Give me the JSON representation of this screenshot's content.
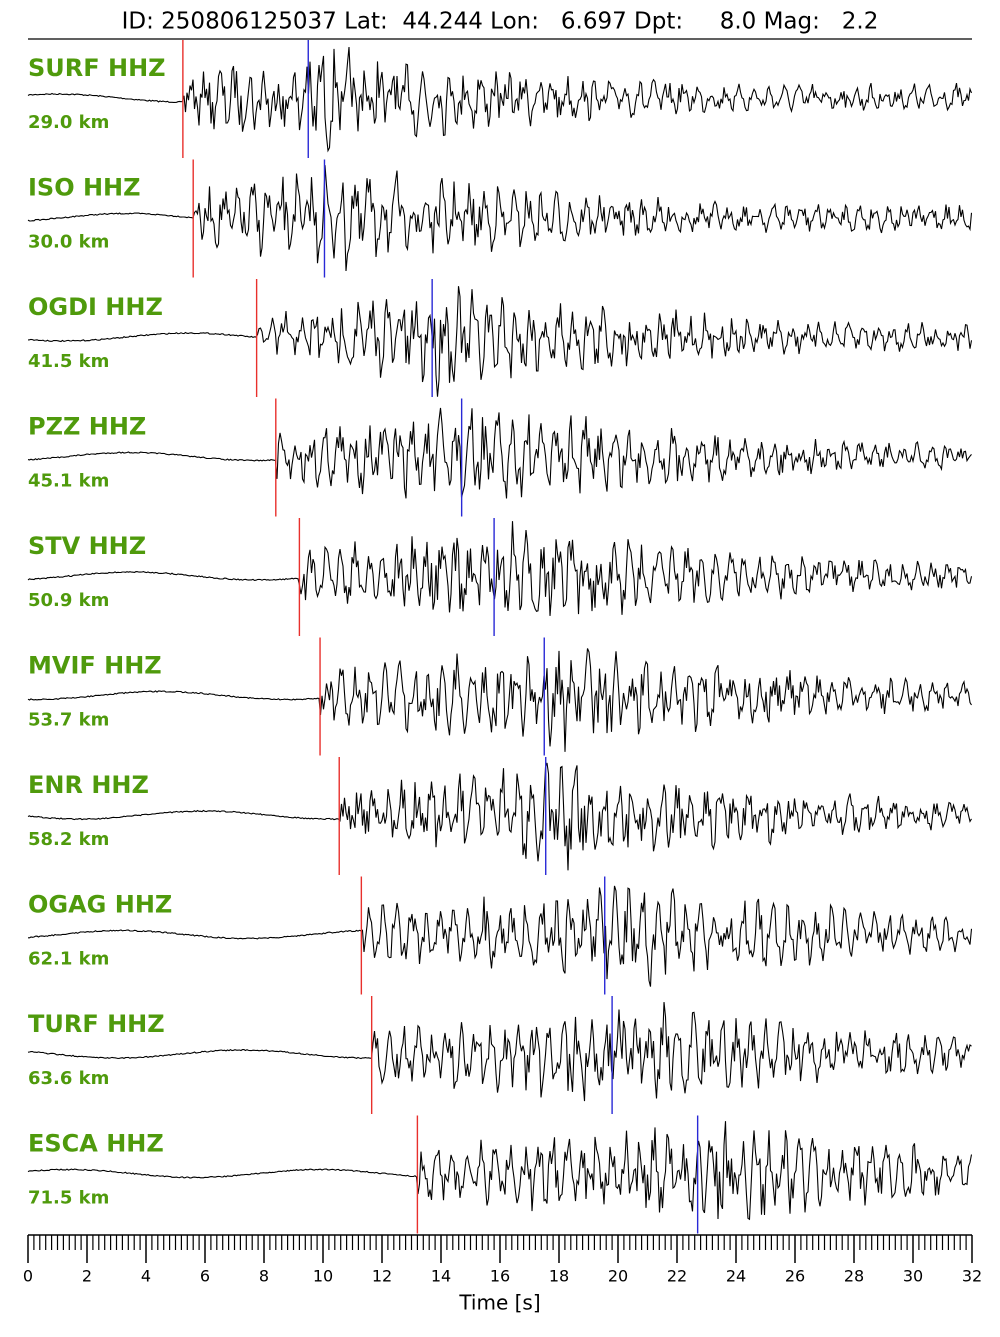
{
  "chart_data": {
    "type": "seismogram",
    "title": "ID: 250806125037 Lat:  44.244 Lon:   6.697 Dpt:     8.0 Mag:   2.2",
    "x_label": "Time [s]",
    "xlim": [
      0,
      32
    ],
    "xticks": [
      0,
      2,
      4,
      6,
      8,
      10,
      12,
      14,
      16,
      18,
      20,
      22,
      24,
      26,
      28,
      30,
      32
    ],
    "xminorticks": [
      0.2,
      0.4,
      0.6,
      0.8,
      1,
      1.2,
      1.4,
      1.6,
      1.8,
      2.2,
      2.4,
      2.6,
      2.8,
      3,
      3.2,
      3.4,
      3.6,
      3.8,
      4.2,
      4.4,
      4.6,
      4.8,
      5,
      5.2,
      5.4,
      5.6,
      5.8,
      6.2,
      6.4,
      6.6,
      6.8,
      7,
      7.2,
      7.4,
      7.6,
      7.8,
      8.2,
      8.4,
      8.6,
      8.8,
      9,
      9.2,
      9.4,
      9.6,
      9.8,
      10.2,
      10.4,
      10.6,
      10.8,
      11,
      11.2,
      11.4,
      11.6,
      11.8,
      12.2,
      12.4,
      12.6,
      12.8,
      13,
      13.2,
      13.4,
      13.6,
      13.8,
      14.2,
      14.4,
      14.6,
      14.8,
      15,
      15.2,
      15.4,
      15.6,
      15.8,
      16.2,
      16.4,
      16.6,
      16.8,
      17,
      17.2,
      17.4,
      17.6,
      17.8,
      18.2,
      18.4,
      18.6,
      18.8,
      19,
      19.2,
      19.4,
      19.6,
      19.8,
      20.2,
      20.4,
      20.6,
      20.8,
      21,
      21.2,
      21.4,
      21.6,
      21.8,
      22.2,
      22.4,
      22.6,
      22.8,
      23,
      23.2,
      23.4,
      23.6,
      23.8,
      24.2,
      24.4,
      24.6,
      24.8,
      25,
      25.2,
      25.4,
      25.6,
      25.8,
      26.2,
      26.4,
      26.6,
      26.8,
      27,
      27.2,
      27.4,
      27.6,
      27.8,
      28.2,
      28.4,
      28.6,
      28.8,
      29,
      29.2,
      29.4,
      29.6,
      29.8,
      30.2,
      30.4,
      30.6,
      30.8,
      31,
      31.2,
      31.4,
      31.6,
      31.8
    ],
    "p_color": "#e8302c",
    "s_color": "#2929d6",
    "traces": [
      {
        "name": "SURF HHZ",
        "distance": "29.0 km",
        "p": 5.25,
        "s": 9.5
      },
      {
        "name": "ISO HHZ",
        "distance": "30.0 km",
        "p": 5.6,
        "s": 10.05
      },
      {
        "name": "OGDI HHZ",
        "distance": "41.5 km",
        "p": 7.75,
        "s": 13.7
      },
      {
        "name": "PZZ HHZ",
        "distance": "45.1 km",
        "p": 8.4,
        "s": 14.7
      },
      {
        "name": "STV HHZ",
        "distance": "50.9 km",
        "p": 9.2,
        "s": 15.8
      },
      {
        "name": "MVIF HHZ",
        "distance": "53.7 km",
        "p": 9.9,
        "s": 17.5
      },
      {
        "name": "ENR HHZ",
        "distance": "58.2 km",
        "p": 10.55,
        "s": 17.55
      },
      {
        "name": "OGAG HHZ",
        "distance": "62.1 km",
        "p": 11.3,
        "s": 19.55
      },
      {
        "name": "TURF HHZ",
        "distance": "63.6 km",
        "p": 11.65,
        "s": 19.8
      },
      {
        "name": "ESCA HHZ",
        "distance": "71.5 km",
        "p": 13.2,
        "s": 22.7
      }
    ]
  }
}
